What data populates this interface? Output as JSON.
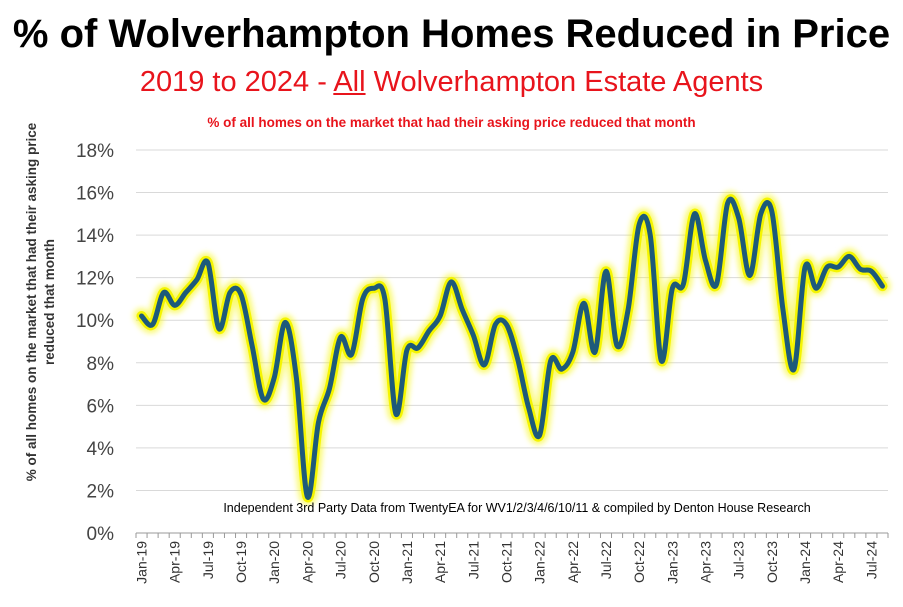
{
  "header": {
    "title": "% of Wolverhampton Homes Reduced in Price",
    "subtitle_pre": "2019 to 2024 - ",
    "subtitle_underlined": "All",
    "subtitle_post": " Wolverhampton Estate Agents",
    "note": "% of all homes on the market that had their asking price reduced that month"
  },
  "chart_data": {
    "type": "line",
    "title": "% of Wolverhampton Homes Reduced in Price",
    "subtitle": "2019 to 2024 - All Wolverhampton Estate Agents",
    "ylabel_lines": [
      "% of all homes on the market that had their asking price",
      "reduced that month"
    ],
    "xlabel": "",
    "ylim": [
      0,
      18
    ],
    "yticks": [
      "0%",
      "2%",
      "4%",
      "6%",
      "8%",
      "10%",
      "12%",
      "14%",
      "16%",
      "18%"
    ],
    "grid": "horizontal",
    "annotation": "Independent 3rd Party Data from TwentyEA for WV1/2/3/4/6/10/11 & compiled by Denton House Research",
    "line_color": "#1d5a7a",
    "glow_color": "#f5f500",
    "x_tick_labels": [
      "Jan-19",
      "Apr-19",
      "Jul-19",
      "Oct-19",
      "Jan-20",
      "Apr-20",
      "Jul-20",
      "Oct-20",
      "Jan-21",
      "Apr-21",
      "Jul-21",
      "Oct-21",
      "Jan-22",
      "Apr-22",
      "Jul-22",
      "Oct-22",
      "Jan-23",
      "Apr-23",
      "Jul-23",
      "Oct-23",
      "Jan-24",
      "Apr-24",
      "Jul-24"
    ],
    "x": [
      "Jan-19",
      "Feb-19",
      "Mar-19",
      "Apr-19",
      "May-19",
      "Jun-19",
      "Jul-19",
      "Aug-19",
      "Sep-19",
      "Oct-19",
      "Nov-19",
      "Dec-19",
      "Jan-20",
      "Feb-20",
      "Mar-20",
      "Apr-20",
      "May-20",
      "Jun-20",
      "Jul-20",
      "Aug-20",
      "Sep-20",
      "Oct-20",
      "Nov-20",
      "Dec-20",
      "Jan-21",
      "Feb-21",
      "Mar-21",
      "Apr-21",
      "May-21",
      "Jun-21",
      "Jul-21",
      "Aug-21",
      "Sep-21",
      "Oct-21",
      "Nov-21",
      "Dec-21",
      "Jan-22",
      "Feb-22",
      "Mar-22",
      "Apr-22",
      "May-22",
      "Jun-22",
      "Jul-22",
      "Aug-22",
      "Sep-22",
      "Oct-22",
      "Nov-22",
      "Dec-22",
      "Jan-23",
      "Feb-23",
      "Mar-23",
      "Apr-23",
      "May-23",
      "Jun-23",
      "Jul-23",
      "Aug-23",
      "Sep-23",
      "Oct-23",
      "Nov-23",
      "Dec-23",
      "Jan-24",
      "Feb-24",
      "Mar-24",
      "Apr-24",
      "May-24",
      "Jun-24",
      "Jul-24",
      "Aug-24"
    ],
    "values": [
      10.2,
      9.8,
      11.3,
      10.7,
      11.3,
      11.9,
      12.7,
      9.6,
      11.3,
      11.2,
      8.8,
      6.3,
      7.3,
      9.9,
      7.3,
      1.7,
      5.2,
      6.8,
      9.2,
      8.4,
      11.0,
      11.5,
      11.0,
      5.6,
      8.6,
      8.7,
      9.5,
      10.2,
      11.8,
      10.5,
      9.3,
      7.9,
      9.8,
      9.8,
      8.2,
      5.9,
      4.6,
      8.1,
      7.7,
      8.5,
      10.8,
      8.5,
      12.3,
      8.8,
      10.5,
      14.5,
      14.0,
      8.1,
      11.5,
      11.7,
      15.0,
      12.8,
      11.7,
      15.5,
      14.8,
      12.1,
      15.0,
      15.1,
      10.5,
      7.7,
      12.5,
      11.5,
      12.5,
      12.5,
      13.0,
      12.4,
      12.3,
      11.6
    ]
  }
}
